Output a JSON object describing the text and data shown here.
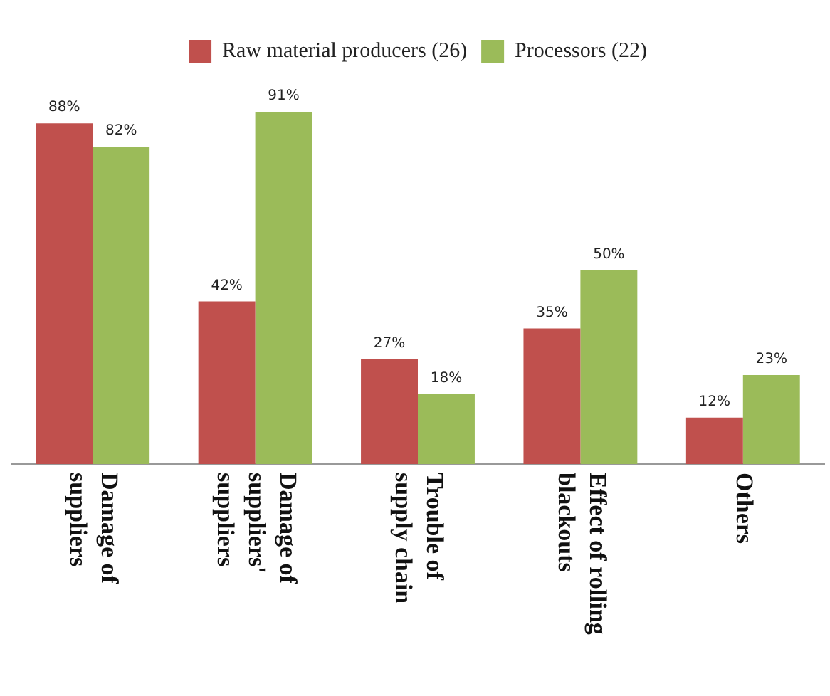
{
  "chart_data": {
    "type": "bar",
    "categories": [
      "Damage of suppliers",
      "Damage of suppliers' suppliers",
      "Trouble of supply chain",
      "Effect of rolling blackouts",
      "Others"
    ],
    "series": [
      {
        "name": "Raw material producers (26)",
        "color": "#c0504d",
        "values": [
          88,
          42,
          27,
          35,
          12
        ],
        "value_labels": [
          "88%",
          "42%",
          "27%",
          "35%",
          "12%"
        ]
      },
      {
        "name": "Processors (22)",
        "color": "#9bbb59",
        "values": [
          82,
          91,
          18,
          50,
          23
        ],
        "value_labels": [
          "82%",
          "91%",
          "18%",
          "50%",
          "23%"
        ]
      }
    ],
    "legend": "top",
    "grid": false
  }
}
